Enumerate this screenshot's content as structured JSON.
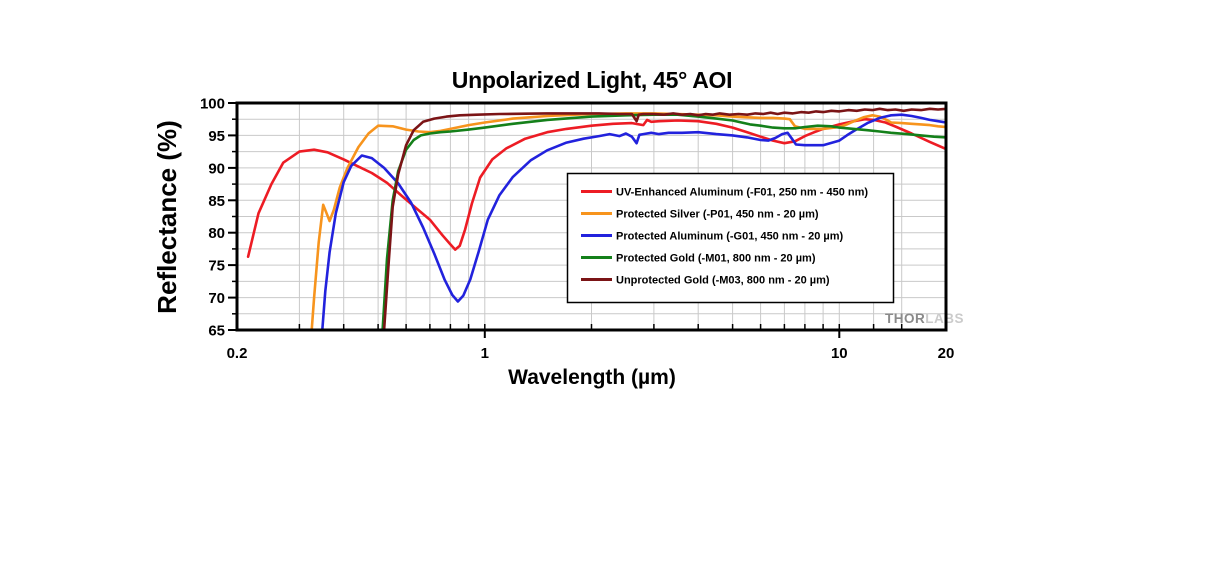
{
  "title": "Unpolarized Light, 45° AOI",
  "watermark": {
    "thor": "THOR",
    "labs": "LABS"
  },
  "chart_data": {
    "type": "line",
    "title": "Unpolarized Light, 45° AOI",
    "xlabel": "Wavelength (µm)",
    "ylabel": "Reflectance (%)",
    "x_scale": "log",
    "xlim": [
      0.2,
      20
    ],
    "ylim": [
      65,
      100
    ],
    "grid": true,
    "legend_position": "center-right",
    "x_tick_labels": [
      "0.2",
      "1",
      "10",
      "20"
    ],
    "x_tick_values": [
      0.2,
      1,
      10,
      20
    ],
    "y_tick_values": [
      65,
      70,
      75,
      80,
      85,
      90,
      95,
      100
    ],
    "x_gridlines": [
      0.3,
      0.4,
      0.5,
      0.6,
      0.7,
      0.8,
      0.9,
      1,
      2,
      3,
      4,
      5,
      6,
      7,
      8,
      9,
      10,
      12.5,
      15
    ],
    "y_minor_step": 2.5,
    "series": [
      {
        "name": "UV-Enhanced Aluminum (-F01, 250 nm - 450 nm)",
        "color": "#ED1C24",
        "x": [
          0.215,
          0.23,
          0.25,
          0.27,
          0.3,
          0.33,
          0.36,
          0.4,
          0.44,
          0.48,
          0.53,
          0.58,
          0.64,
          0.7,
          0.76,
          0.8,
          0.825,
          0.85,
          0.88,
          0.92,
          0.97,
          1.05,
          1.15,
          1.3,
          1.5,
          1.7,
          2.0,
          2.3,
          2.6,
          2.8,
          2.87,
          2.95,
          3.1,
          3.5,
          4.0,
          4.5,
          5.0,
          5.5,
          6.0,
          6.5,
          7.0,
          7.5,
          8.0,
          8.5,
          9.0,
          10.0,
          11.0,
          11.8,
          12.5,
          13.5,
          14.5,
          16.0,
          18.0,
          20.0
        ],
        "y": [
          76.3,
          83.0,
          87.5,
          90.8,
          92.5,
          92.8,
          92.4,
          91.3,
          90.2,
          89.2,
          87.7,
          85.8,
          83.8,
          82.0,
          79.6,
          78.2,
          77.4,
          78.0,
          80.5,
          84.5,
          88.5,
          91.3,
          93.0,
          94.5,
          95.5,
          96.0,
          96.5,
          96.8,
          96.9,
          96.6,
          97.4,
          97.1,
          97.2,
          97.3,
          97.2,
          96.8,
          96.2,
          95.5,
          94.8,
          94.2,
          93.8,
          94.1,
          94.9,
          95.5,
          96.0,
          96.7,
          97.2,
          97.5,
          97.4,
          97.0,
          96.3,
          95.3,
          94.0,
          92.9
        ]
      },
      {
        "name": "Protected Silver (-P01, 450 nm - 20 µm)",
        "color": "#F7941D",
        "x": [
          0.325,
          0.33,
          0.34,
          0.35,
          0.358,
          0.365,
          0.375,
          0.39,
          0.41,
          0.44,
          0.47,
          0.5,
          0.55,
          0.6,
          0.65,
          0.7,
          0.75,
          0.8,
          0.9,
          1.0,
          1.2,
          1.5,
          2.0,
          2.5,
          3.0,
          3.5,
          4.0,
          4.5,
          5.0,
          5.5,
          6.0,
          6.5,
          7.0,
          7.25,
          7.5,
          8.0,
          9.0,
          10.0,
          10.5,
          11.0,
          11.7,
          12.4,
          13.0,
          13.6,
          14.0,
          15.0,
          16.0,
          17.0,
          18.0,
          19.0,
          20.0
        ],
        "y": [
          65.0,
          70.0,
          78.5,
          84.3,
          83.0,
          81.8,
          83.5,
          87.0,
          90.0,
          93.2,
          95.3,
          96.5,
          96.4,
          95.9,
          95.6,
          95.5,
          95.7,
          96.0,
          96.6,
          97.0,
          97.6,
          98.0,
          98.3,
          98.4,
          98.4,
          98.3,
          98.2,
          98.1,
          97.9,
          97.8,
          97.7,
          97.7,
          97.6,
          97.5,
          96.4,
          96.0,
          96.0,
          96.3,
          96.7,
          97.2,
          97.8,
          98.1,
          97.9,
          97.4,
          97.0,
          96.9,
          96.8,
          96.7,
          96.6,
          96.4,
          96.3
        ]
      },
      {
        "name": "Protected Aluminum (-G01, 450 nm - 20 µm)",
        "color": "#2222DD",
        "x": [
          0.348,
          0.355,
          0.365,
          0.38,
          0.4,
          0.42,
          0.45,
          0.48,
          0.52,
          0.57,
          0.62,
          0.67,
          0.72,
          0.77,
          0.81,
          0.84,
          0.87,
          0.91,
          0.96,
          1.02,
          1.1,
          1.2,
          1.35,
          1.5,
          1.7,
          1.9,
          2.1,
          2.25,
          2.4,
          2.5,
          2.6,
          2.68,
          2.73,
          2.8,
          2.95,
          3.1,
          3.3,
          3.6,
          4.0,
          4.5,
          5.0,
          5.5,
          6.0,
          6.3,
          6.6,
          6.9,
          7.15,
          7.35,
          7.55,
          8.0,
          9.0,
          10.0,
          10.5,
          11.0,
          12.0,
          13.0,
          14.0,
          15.0,
          16.0,
          17.0,
          18.0,
          19.0,
          20.0
        ],
        "y": [
          65.0,
          71.0,
          77.0,
          83.0,
          87.8,
          90.3,
          91.9,
          91.5,
          90.0,
          87.6,
          84.6,
          80.8,
          76.8,
          72.8,
          70.4,
          69.4,
          70.3,
          72.8,
          77.0,
          82.0,
          85.8,
          88.6,
          91.2,
          92.7,
          93.9,
          94.5,
          94.9,
          95.2,
          94.9,
          95.3,
          94.8,
          93.8,
          95.1,
          95.2,
          95.4,
          95.2,
          95.4,
          95.4,
          95.5,
          95.2,
          95.0,
          94.7,
          94.3,
          94.2,
          94.6,
          95.2,
          95.4,
          94.5,
          93.6,
          93.5,
          93.5,
          94.2,
          95.0,
          95.7,
          96.9,
          97.7,
          98.1,
          98.2,
          98.0,
          97.7,
          97.4,
          97.2,
          97.0
        ]
      },
      {
        "name": "Protected Gold (-M01, 800 nm - 20 µm)",
        "color": "#14801A",
        "x": [
          0.515,
          0.53,
          0.55,
          0.57,
          0.6,
          0.63,
          0.66,
          0.7,
          0.75,
          0.8,
          0.9,
          1.0,
          1.2,
          1.5,
          2.0,
          2.5,
          3.0,
          3.5,
          4.0,
          4.5,
          5.0,
          5.3,
          5.6,
          6.0,
          6.5,
          7.0,
          7.5,
          8.0,
          8.7,
          9.5,
          10.0,
          11.0,
          12.0,
          13.0,
          14.0,
          15.5,
          17.0,
          18.5,
          20.0
        ],
        "y": [
          65.0,
          76.0,
          85.0,
          89.5,
          92.8,
          94.3,
          95.0,
          95.3,
          95.5,
          95.6,
          95.9,
          96.2,
          96.8,
          97.4,
          97.9,
          98.1,
          98.2,
          98.2,
          97.9,
          97.6,
          97.3,
          97.0,
          96.7,
          96.5,
          96.2,
          96.1,
          96.1,
          96.3,
          96.5,
          96.4,
          96.2,
          96.0,
          95.8,
          95.6,
          95.4,
          95.2,
          95.0,
          94.8,
          94.7
        ]
      },
      {
        "name": "Unprotected Gold (-M03, 800 nm - 20 µm)",
        "color": "#7B1416",
        "x": [
          0.52,
          0.535,
          0.55,
          0.57,
          0.6,
          0.63,
          0.67,
          0.72,
          0.78,
          0.85,
          0.95,
          1.1,
          1.3,
          1.5,
          1.8,
          2.1,
          2.4,
          2.6,
          2.68,
          2.72,
          2.8,
          3.0,
          3.2,
          3.4,
          3.6,
          3.8,
          4.0,
          4.2,
          4.4,
          4.6,
          4.9,
          5.2,
          5.5,
          5.8,
          6.1,
          6.4,
          6.7,
          7.0,
          7.4,
          7.8,
          8.2,
          8.6,
          9.0,
          9.5,
          10.0,
          10.6,
          11.2,
          11.8,
          12.4,
          13.0,
          13.7,
          14.4,
          15.2,
          16.0,
          17.0,
          18.0,
          19.0,
          20.0
        ],
        "y": [
          65.0,
          75.0,
          84.0,
          89.0,
          93.5,
          95.8,
          97.1,
          97.6,
          97.9,
          98.1,
          98.2,
          98.3,
          98.35,
          98.4,
          98.4,
          98.4,
          98.3,
          98.3,
          97.2,
          98.2,
          98.3,
          98.3,
          98.2,
          98.4,
          98.2,
          98.3,
          98.1,
          98.3,
          98.2,
          98.4,
          98.2,
          98.3,
          98.2,
          98.4,
          98.3,
          98.5,
          98.3,
          98.5,
          98.4,
          98.6,
          98.5,
          98.7,
          98.6,
          98.8,
          98.7,
          98.9,
          98.8,
          99.0,
          98.9,
          99.1,
          98.9,
          99.0,
          98.8,
          99.0,
          98.9,
          99.1,
          99.0,
          99.1
        ]
      }
    ]
  },
  "style": {
    "grid_color": "#C9C9C9",
    "frame_color": "#000000",
    "watermark_thor_color": "#8A8A8A",
    "watermark_labs_color": "#CBCBCB"
  }
}
